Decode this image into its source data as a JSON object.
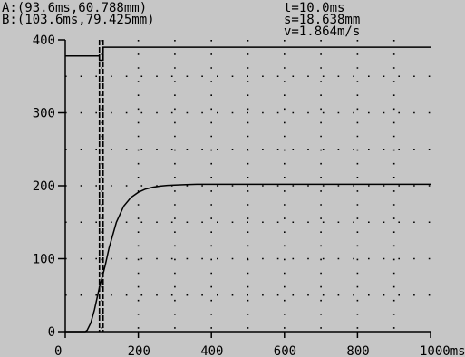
{
  "cursor_readout": {
    "a": "A:(93.6ms,60.788mm)",
    "b": "B:(103.6ms,79.425mm)",
    "t": "t=10.0ms",
    "s": "s=18.638mm",
    "v": "v=1.864m/s"
  },
  "chart_data": {
    "type": "line",
    "xlabel": "",
    "ylabel": "",
    "x_unit": "ms",
    "xlim": [
      0,
      1000
    ],
    "ylim": [
      0,
      400
    ],
    "x_ticks": [
      0,
      200,
      400,
      600,
      800,
      1000
    ],
    "y_ticks": [
      0,
      100,
      200,
      300,
      400
    ],
    "x_tick_labels": [
      "0",
      "200",
      "400",
      "600",
      "800",
      "1000ms"
    ],
    "y_tick_labels": [
      "0",
      "100",
      "200",
      "300",
      "400"
    ],
    "grid": "dotted",
    "series": [
      {
        "x": [
          0,
          93.6,
          93.6,
          103.6,
          103.6,
          1000
        ],
        "y": [
          378,
          378,
          372,
          372,
          390,
          390
        ]
      },
      {
        "x": [
          0,
          55,
          60,
          70,
          80,
          93.6,
          103.6,
          110,
          120,
          140,
          160,
          180,
          200,
          220,
          240,
          260,
          280,
          300,
          330,
          360,
          400,
          500,
          600,
          800,
          1000
        ],
        "y": [
          0,
          0,
          2,
          12,
          30,
          60.8,
          79.4,
          92,
          115,
          150,
          172,
          184,
          191,
          195.5,
          198,
          199.5,
          200.5,
          201,
          201.5,
          202,
          202,
          202,
          202,
          202,
          202
        ]
      }
    ],
    "cursors": [
      {
        "name": "A",
        "x": 93.6
      },
      {
        "name": "B",
        "x": 103.6
      }
    ]
  }
}
